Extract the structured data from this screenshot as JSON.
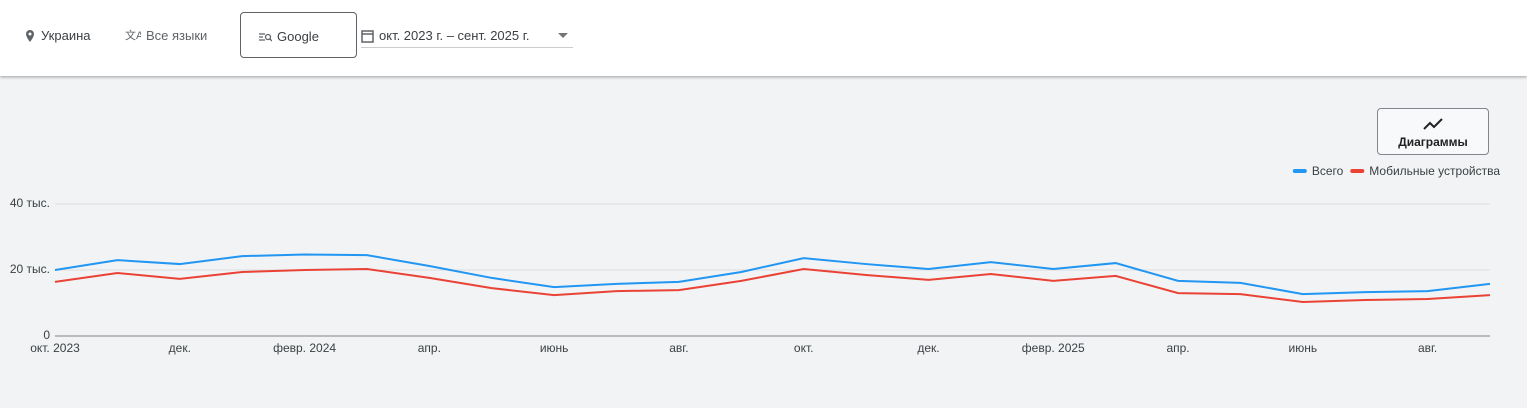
{
  "toolbar": {
    "location": "Украина",
    "language": "Все языки",
    "network": "Google",
    "date_range": "окт. 2023 г. – сент. 2025 г."
  },
  "chart_button": "Диаграммы",
  "chart_data": {
    "type": "line",
    "categories": [
      "окт. 2023",
      null,
      "дек.",
      null,
      "февр. 2024",
      null,
      "апр.",
      null,
      "июнь",
      null,
      "авг.",
      null,
      "окт.",
      null,
      "дек.",
      null,
      "февр. 2025",
      null,
      "апр.",
      null,
      "июнь",
      null,
      "авг.",
      null
    ],
    "series": [
      {
        "name": "Всего",
        "color": "#2196f3",
        "values": [
          20000,
          23000,
          21800,
          24200,
          24700,
          24500,
          21200,
          17600,
          14800,
          15800,
          16400,
          19400,
          23600,
          21800,
          20300,
          22400,
          20300,
          22100,
          16700,
          16100,
          12700,
          13300,
          13600,
          15800
        ]
      },
      {
        "name": "Мобильные устройства",
        "color": "#ea4335",
        "values": [
          16400,
          19100,
          17300,
          19400,
          20000,
          20300,
          17600,
          14500,
          12400,
          13600,
          13900,
          16700,
          20300,
          18500,
          17000,
          18800,
          16700,
          18200,
          13000,
          12700,
          10300,
          10900,
          11200,
          12400
        ]
      }
    ],
    "ylim": [
      0,
      40000
    ],
    "yticks": [
      0,
      {
        "value": 20000,
        "label": "20 тыс."
      },
      {
        "value": 40000,
        "label": "40 тыс."
      }
    ],
    "grid": true,
    "legend": "top-right"
  }
}
